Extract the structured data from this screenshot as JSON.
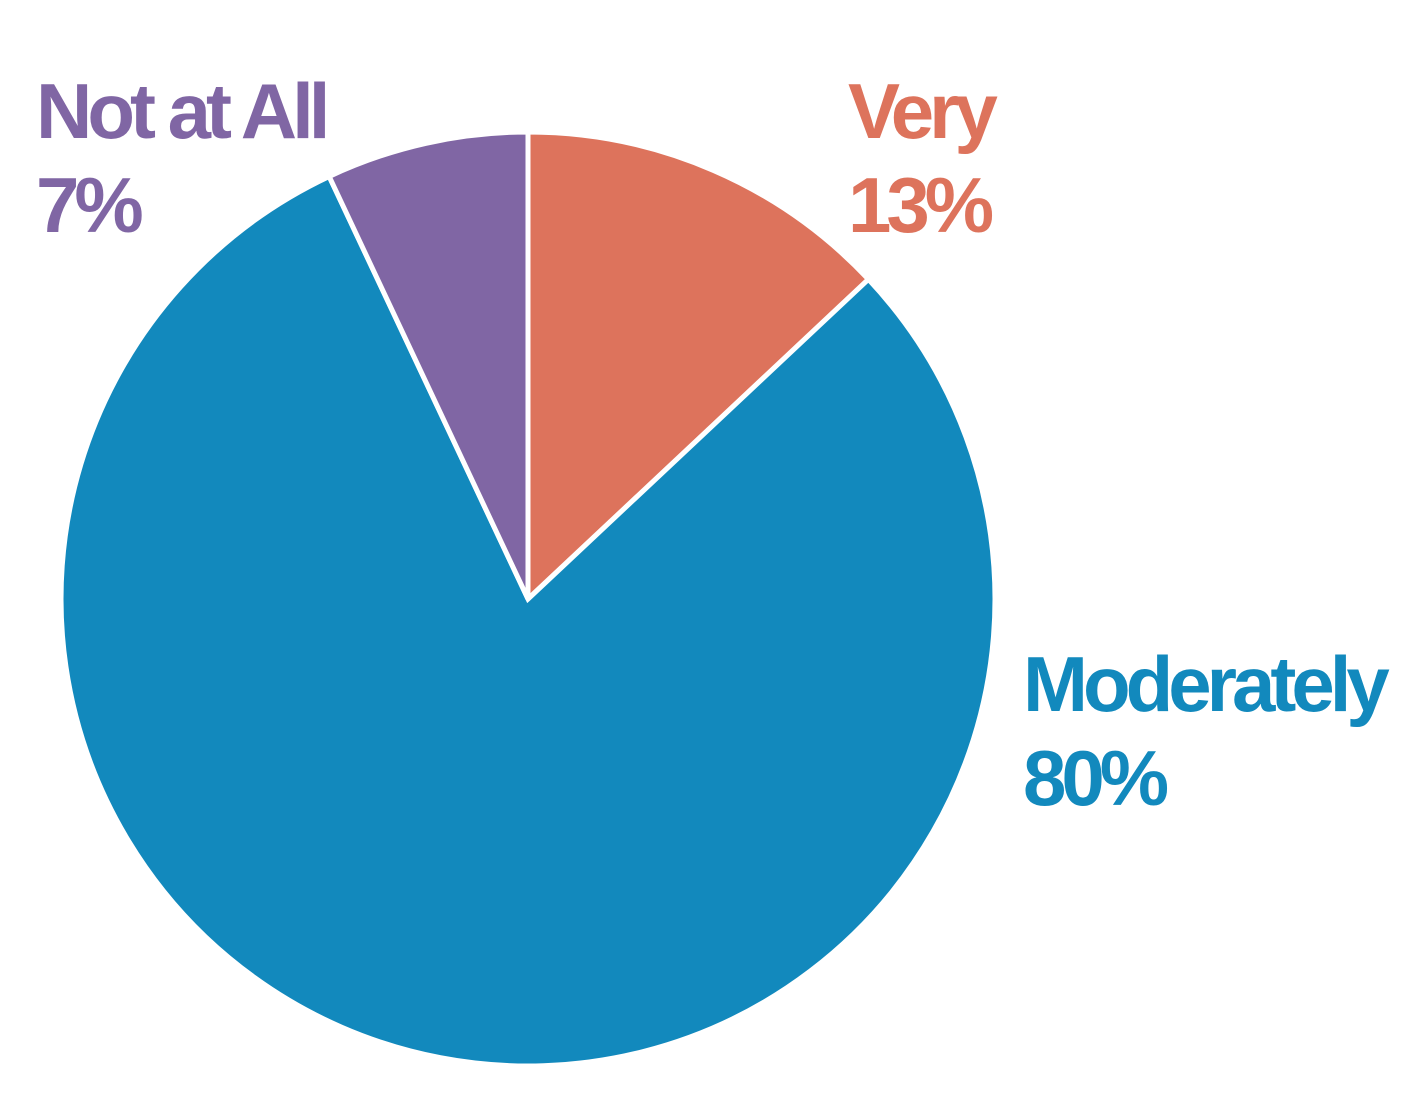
{
  "chart_data": {
    "type": "pie",
    "categories": [
      "Very",
      "Moderately",
      "Not at All"
    ],
    "values": [
      13,
      80,
      7
    ],
    "value_labels": [
      "13%",
      "80%",
      "7%"
    ],
    "colors": [
      "#dd735c",
      "#1289bd",
      "#8066a4"
    ],
    "slice_border_color": "#ffffff",
    "start": "12 o'clock, clockwise"
  }
}
